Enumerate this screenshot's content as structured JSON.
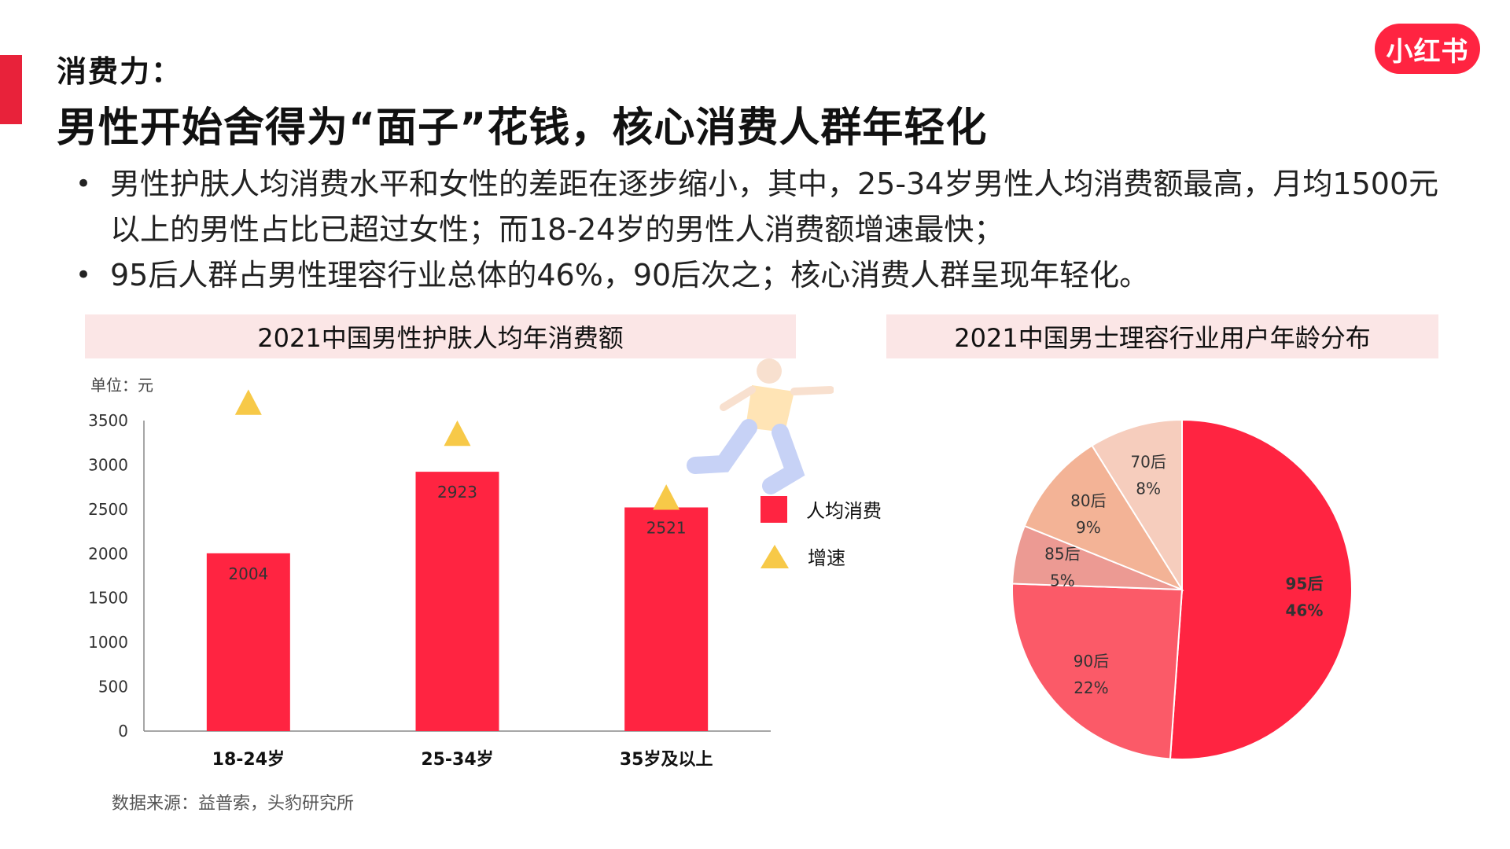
{
  "header": {
    "kicker": "消费力：",
    "headline": "男性开始舍得为“面子”花钱，核心消费人群年轻化",
    "logo_text": "小红书"
  },
  "bullets": [
    "男性护肤人均消费水平和女性的差距在逐步缩小，其中，25-34岁男性人均消费额最高，月均1500元以上的男性占比已超过女性；而18-24岁的男性人消费额增速最快；",
    "95后人群占男性理容行业总体的46%，90后次之；核心消费人群呈现年轻化。"
  ],
  "source": "数据来源：益普索，头豹研究所",
  "colors": {
    "accent": "#e8223a",
    "bar": "#ff2441",
    "triangle": "#f7c948",
    "title_bg": "#fbe6e6"
  },
  "chart_data": [
    {
      "type": "bar",
      "title": "2021中国男性护肤人均年消费额",
      "unit_label": "单位：元",
      "categories": [
        "18-24岁",
        "25-34岁",
        "35岁及以上"
      ],
      "series": [
        {
          "name": "人均消费",
          "values": [
            2004,
            2923,
            2521
          ]
        },
        {
          "name": "增速",
          "marker": "triangle",
          "values": [
            3700,
            3350,
            2630
          ]
        }
      ],
      "yticks": [
        "0",
        "500",
        "1000",
        "1500",
        "2000",
        "2500",
        "3000",
        "3500"
      ],
      "ylim": [
        0,
        3500
      ],
      "data_labels": [
        "2004",
        "2923",
        "2521"
      ],
      "legend_position": "right"
    },
    {
      "type": "pie",
      "title": "2021中国男士理容行业用户年龄分布",
      "slices": [
        {
          "label": "95后",
          "value": 46,
          "pct": "46%",
          "color": "#ff2441",
          "bold": true
        },
        {
          "label": "90后",
          "value": 22,
          "pct": "22%",
          "color": "#fb5a68"
        },
        {
          "label": "85后",
          "value": 5,
          "pct": "5%",
          "color": "#ec9a93"
        },
        {
          "label": "80后",
          "value": 9,
          "pct": "9%",
          "color": "#f3b396"
        },
        {
          "label": "70后",
          "value": 8,
          "pct": "8%",
          "color": "#f6cdbd"
        }
      ]
    }
  ]
}
